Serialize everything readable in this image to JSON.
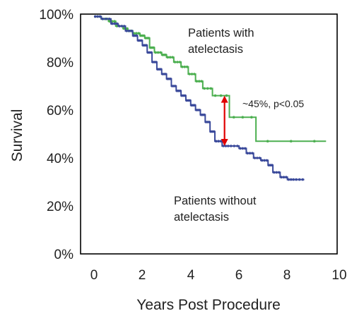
{
  "chart_data": {
    "type": "line",
    "subtype": "kaplan-meier-step",
    "xlabel": "Years Post Procedure",
    "ylabel": "Survival",
    "xlim": [
      0,
      10
    ],
    "ylim": [
      0,
      100
    ],
    "x_ticks": [
      "0",
      "2",
      "4",
      "6",
      "8",
      "10"
    ],
    "y_ticks": [
      "0%",
      "20%",
      "40%",
      "60%",
      "80%",
      "100%"
    ],
    "grid": false,
    "legend": "none",
    "annotations": {
      "with_label": [
        "Patients with",
        "atelectasis"
      ],
      "without_label": [
        "Patients without",
        "atelectasis"
      ],
      "difference_label": "~45%, p<0.05"
    },
    "difference_marker": {
      "x": 5.4,
      "y_top": 66,
      "y_bottom": 45,
      "color": "#e00000"
    },
    "series": [
      {
        "key": "with",
        "color": "#4caf50",
        "x": [
          0,
          0.3,
          0.6,
          0.9,
          1.2,
          1.4,
          1.6,
          1.9,
          2.1,
          2.3,
          2.5,
          2.8,
          3.0,
          3.3,
          3.6,
          3.9,
          4.2,
          4.5,
          4.9,
          5.6,
          6.7,
          9.6
        ],
        "y": [
          99,
          98,
          97,
          95,
          94,
          93,
          92,
          91,
          90,
          86,
          84,
          83,
          82,
          80,
          78,
          75,
          72,
          69,
          66,
          57,
          47,
          47
        ]
      },
      {
        "key": "without",
        "color": "#3b4a9b",
        "x": [
          0,
          0.3,
          0.7,
          1.0,
          1.3,
          1.6,
          1.8,
          2.0,
          2.2,
          2.4,
          2.6,
          2.8,
          3.0,
          3.2,
          3.4,
          3.6,
          3.8,
          4.0,
          4.2,
          4.4,
          4.6,
          4.8,
          5.0,
          5.3,
          5.6,
          6.0,
          6.3,
          6.6,
          6.9,
          7.2,
          7.4,
          7.7,
          8.0,
          8.3,
          8.7
        ],
        "y": [
          99,
          98,
          96,
          95,
          93,
          91,
          89,
          87,
          84,
          80,
          77,
          75,
          73,
          70,
          68,
          66,
          64,
          62,
          60,
          58,
          55,
          51,
          47,
          45,
          45,
          44,
          42,
          40,
          39,
          37,
          34,
          32,
          31,
          31,
          31
        ]
      }
    ]
  }
}
